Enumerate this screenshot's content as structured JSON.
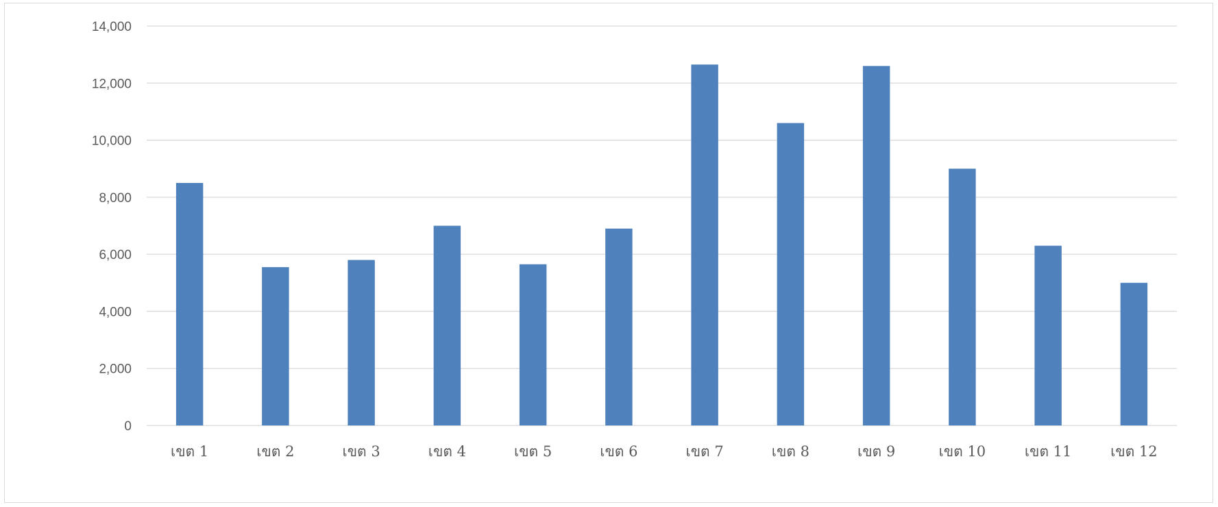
{
  "chart_data": {
    "type": "bar",
    "categories": [
      "เขต 1",
      "เขต 2",
      "เขต 3",
      "เขต 4",
      "เขต 5",
      "เขต 6",
      "เขต 7",
      "เขต 8",
      "เขต 9",
      "เขต 10",
      "เขต 11",
      "เขต 12"
    ],
    "values": [
      8500,
      5550,
      5800,
      7000,
      5650,
      6900,
      12650,
      10600,
      12600,
      9000,
      6300,
      5000
    ],
    "title": "",
    "xlabel": "",
    "ylabel": "",
    "ylim": [
      0,
      14000
    ],
    "yticks": [
      "0",
      "2,000",
      "4,000",
      "6,000",
      "8,000",
      "10,000",
      "12,000",
      "14,000"
    ],
    "grid": true,
    "bar_color": "#4f81bd"
  }
}
